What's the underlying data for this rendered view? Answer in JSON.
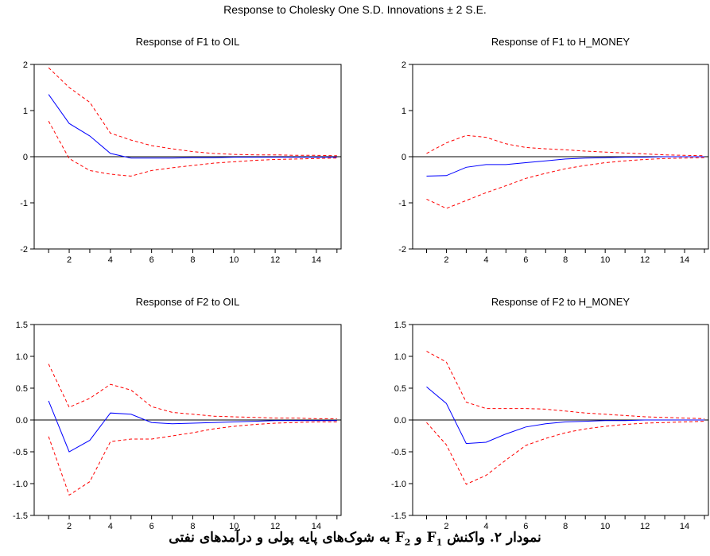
{
  "title": "Response to Cholesky One S.D. Innovations ± 2 S.E.",
  "caption": {
    "part1": "نمودار ۲. واکنش F",
    "sub1": "1",
    "part2": " و F",
    "sub2": "2",
    "part3": " به شوک‌های پایه پولی و درآمدهای نفتی"
  },
  "colors": {
    "response": "#0000ff",
    "bands": "#ff0000",
    "zero": "#000000",
    "frame": "#000000"
  },
  "chart_data": [
    {
      "type": "line",
      "title": "Response of F1 to OIL",
      "x": [
        1,
        2,
        3,
        4,
        5,
        6,
        7,
        8,
        9,
        10,
        11,
        12,
        13,
        14,
        15
      ],
      "xticks": [
        2,
        4,
        6,
        8,
        10,
        12,
        14
      ],
      "xlim": [
        0.3,
        15.2
      ],
      "ylim": [
        -2,
        2
      ],
      "yticks": [
        2,
        1,
        0,
        -1,
        -2
      ],
      "ytick_labels": [
        "2",
        "1",
        "0",
        "-1",
        "-2"
      ],
      "series": [
        {
          "role": "response",
          "values": [
            1.35,
            0.72,
            0.45,
            0.07,
            -0.03,
            -0.03,
            -0.03,
            -0.02,
            -0.02,
            -0.01,
            -0.01,
            -0.01,
            -0.01,
            -0.01,
            -0.01
          ]
        },
        {
          "role": "upper",
          "values": [
            1.93,
            1.5,
            1.18,
            0.51,
            0.36,
            0.24,
            0.17,
            0.11,
            0.07,
            0.05,
            0.04,
            0.04,
            0.03,
            0.03,
            0.02
          ]
        },
        {
          "role": "lower",
          "values": [
            0.77,
            -0.04,
            -0.3,
            -0.38,
            -0.42,
            -0.3,
            -0.24,
            -0.19,
            -0.14,
            -0.11,
            -0.08,
            -0.06,
            -0.05,
            -0.04,
            -0.03
          ]
        }
      ]
    },
    {
      "type": "line",
      "title": "Response of F1 to H_MONEY",
      "x": [
        1,
        2,
        3,
        4,
        5,
        6,
        7,
        8,
        9,
        10,
        11,
        12,
        13,
        14,
        15
      ],
      "xticks": [
        2,
        4,
        6,
        8,
        10,
        12,
        14
      ],
      "xlim": [
        0.3,
        15.2
      ],
      "ylim": [
        -2,
        2
      ],
      "yticks": [
        2,
        1,
        0,
        -1,
        -2
      ],
      "ytick_labels": [
        "2",
        "1",
        "0",
        "-1",
        "-2"
      ],
      "series": [
        {
          "role": "response",
          "values": [
            -0.42,
            -0.41,
            -0.23,
            -0.17,
            -0.17,
            -0.13,
            -0.09,
            -0.05,
            -0.03,
            -0.02,
            -0.01,
            -0.01,
            0.0,
            0.0,
            0.0
          ]
        },
        {
          "role": "upper",
          "values": [
            0.07,
            0.3,
            0.46,
            0.42,
            0.28,
            0.2,
            0.17,
            0.15,
            0.12,
            0.1,
            0.08,
            0.06,
            0.04,
            0.03,
            0.02
          ]
        },
        {
          "role": "lower",
          "values": [
            -0.92,
            -1.12,
            -0.95,
            -0.78,
            -0.63,
            -0.47,
            -0.36,
            -0.26,
            -0.19,
            -0.13,
            -0.09,
            -0.06,
            -0.04,
            -0.03,
            -0.02
          ]
        }
      ]
    },
    {
      "type": "line",
      "title": "Response of F2 to OIL",
      "x": [
        1,
        2,
        3,
        4,
        5,
        6,
        7,
        8,
        9,
        10,
        11,
        12,
        13,
        14,
        15
      ],
      "xticks": [
        2,
        4,
        6,
        8,
        10,
        12,
        14
      ],
      "xlim": [
        0.3,
        15.2
      ],
      "ylim": [
        -1.5,
        1.5
      ],
      "yticks": [
        1.5,
        1.0,
        0.5,
        0.0,
        -0.5,
        -1.0,
        -1.5
      ],
      "ytick_labels": [
        "1.5",
        "1.0",
        "0.5",
        "0.0",
        "-0.5",
        "-1.0",
        "-1.5"
      ],
      "series": [
        {
          "role": "response",
          "values": [
            0.3,
            -0.5,
            -0.32,
            0.11,
            0.09,
            -0.04,
            -0.06,
            -0.05,
            -0.04,
            -0.03,
            -0.02,
            -0.01,
            -0.01,
            -0.01,
            -0.01
          ]
        },
        {
          "role": "upper",
          "values": [
            0.88,
            0.2,
            0.34,
            0.56,
            0.47,
            0.21,
            0.12,
            0.09,
            0.06,
            0.05,
            0.04,
            0.03,
            0.03,
            0.02,
            0.02
          ]
        },
        {
          "role": "lower",
          "values": [
            -0.26,
            -1.18,
            -0.97,
            -0.34,
            -0.3,
            -0.3,
            -0.25,
            -0.2,
            -0.14,
            -0.1,
            -0.07,
            -0.05,
            -0.04,
            -0.03,
            -0.03
          ]
        }
      ]
    },
    {
      "type": "line",
      "title": "Response of F2 to H_MONEY",
      "x": [
        1,
        2,
        3,
        4,
        5,
        6,
        7,
        8,
        9,
        10,
        11,
        12,
        13,
        14,
        15
      ],
      "xticks": [
        2,
        4,
        6,
        8,
        10,
        12,
        14
      ],
      "xlim": [
        0.3,
        15.2
      ],
      "ylim": [
        -1.5,
        1.5
      ],
      "yticks": [
        1.5,
        1.0,
        0.5,
        0.0,
        -0.5,
        -1.0,
        -1.5
      ],
      "ytick_labels": [
        "1.5",
        "1.0",
        "0.5",
        "0.0",
        "-0.5",
        "-1.0",
        "-1.5"
      ],
      "series": [
        {
          "role": "response",
          "values": [
            0.52,
            0.26,
            -0.37,
            -0.35,
            -0.22,
            -0.11,
            -0.06,
            -0.03,
            -0.02,
            -0.01,
            -0.01,
            0.0,
            0.0,
            0.0,
            0.0
          ]
        },
        {
          "role": "upper",
          "values": [
            1.08,
            0.91,
            0.28,
            0.18,
            0.18,
            0.18,
            0.17,
            0.14,
            0.11,
            0.09,
            0.07,
            0.05,
            0.04,
            0.03,
            0.02
          ]
        },
        {
          "role": "lower",
          "values": [
            -0.04,
            -0.39,
            -1.01,
            -0.87,
            -0.63,
            -0.4,
            -0.29,
            -0.2,
            -0.14,
            -0.1,
            -0.07,
            -0.05,
            -0.04,
            -0.03,
            -0.02
          ]
        }
      ]
    }
  ]
}
